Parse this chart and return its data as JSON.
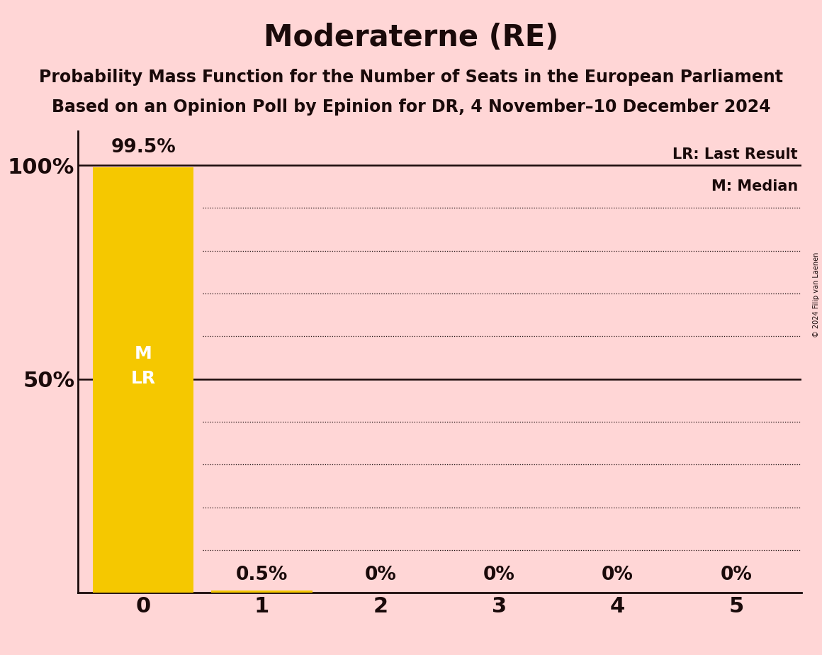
{
  "title": "Moderaterne (RE)",
  "subtitle1": "Probability Mass Function for the Number of Seats in the European Parliament",
  "subtitle2": "Based on an Opinion Poll by Epinion for DR, 4 November–10 December 2024",
  "copyright": "© 2024 Filip van Laenen",
  "seats": [
    0,
    1,
    2,
    3,
    4,
    5
  ],
  "probabilities": [
    99.5,
    0.5,
    0.0,
    0.0,
    0.0,
    0.0
  ],
  "bar_color": "#F5C800",
  "background_color": "#FFD6D6",
  "text_color": "#1a0a0a",
  "bar_label_color": "#FFFFFF",
  "median": 0,
  "last_result": 0,
  "solid_lines": [
    50,
    100
  ],
  "dotted_lines": [
    10,
    20,
    30,
    40,
    60,
    70,
    80,
    90
  ],
  "legend_lr": "LR: Last Result",
  "legend_m": "M: Median",
  "title_fontsize": 30,
  "subtitle_fontsize": 17,
  "tick_fontsize": 20,
  "label_fontsize": 19
}
